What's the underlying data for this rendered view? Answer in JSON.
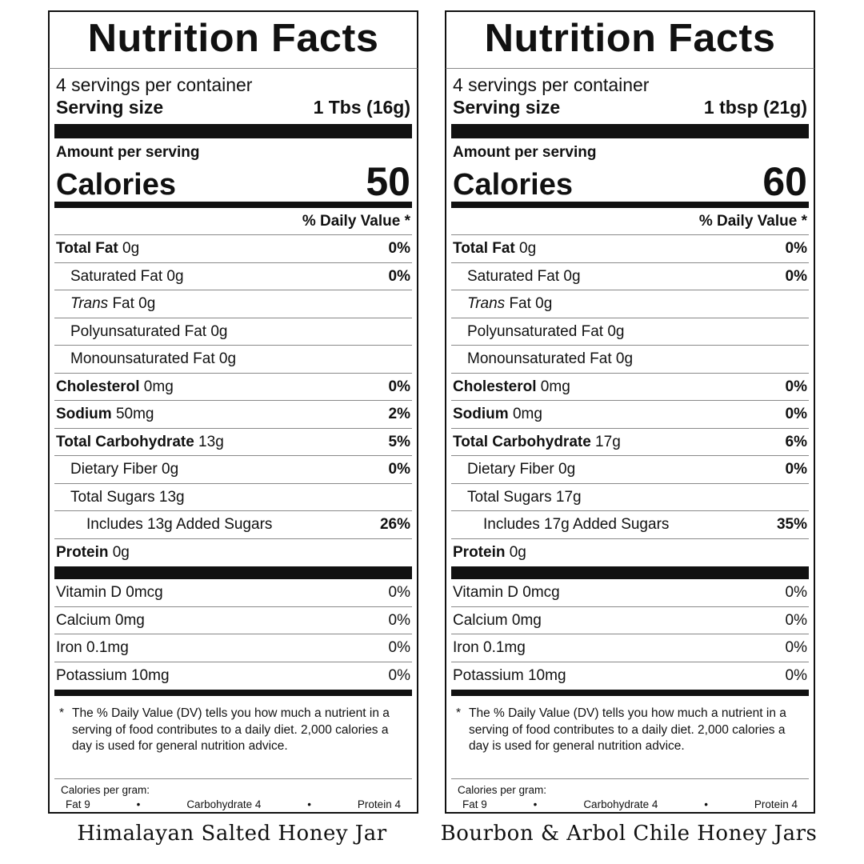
{
  "labels": [
    {
      "title": "Nutrition Facts",
      "servings_per_container": "4 servings per container",
      "serving_size_label": "Serving size",
      "serving_size_value": "1 Tbs (16g)",
      "amount_per_serving": "Amount per serving",
      "calories_label": "Calories",
      "calories_value": "50",
      "daily_value_header": "% Daily Value *",
      "nutrients": {
        "total_fat": {
          "label": "Total Fat",
          "amount": " 0g",
          "dv": "0%"
        },
        "saturated_fat": {
          "label": "Saturated Fat 0g",
          "dv": "0%"
        },
        "trans_fat": {
          "label_italic": "Trans",
          "label_rest": " Fat 0g"
        },
        "polyunsaturated_fat": {
          "label": "Polyunsaturated Fat 0g"
        },
        "monounsaturated_fat": {
          "label": "Monounsaturated Fat 0g"
        },
        "cholesterol": {
          "label": "Cholesterol",
          "amount": " 0mg",
          "dv": "0%"
        },
        "sodium": {
          "label": "Sodium",
          "amount": " 50mg",
          "dv": "2%"
        },
        "total_carbohydrate": {
          "label": "Total Carbohydrate",
          "amount": " 13g",
          "dv": "5%"
        },
        "dietary_fiber": {
          "label": "Dietary Fiber 0g",
          "dv": "0%"
        },
        "total_sugars": {
          "label": "Total Sugars 13g"
        },
        "added_sugars": {
          "label": "Includes 13g Added Sugars",
          "dv": "26%"
        },
        "protein": {
          "label": "Protein",
          "amount": " 0g"
        }
      },
      "vitamins": [
        {
          "label": "Vitamin D 0mcg",
          "dv": "0%"
        },
        {
          "label": "Calcium 0mg",
          "dv": "0%"
        },
        {
          "label": "Iron 0.1mg",
          "dv": "0%"
        },
        {
          "label": "Potassium 10mg",
          "dv": "0%"
        }
      ],
      "footnote_star": "*",
      "footnote": "The % Daily Value (DV) tells you how much a nutrient in a serving of food contributes to a daily diet. 2,000 calories a day is used for general nutrition advice.",
      "calories_per_gram_label": "Calories per gram:",
      "calories_per_gram": {
        "fat": "Fat 9",
        "carb": "Carbohydrate 4",
        "protein": "Protein 4",
        "sep": "•"
      },
      "caption": "Himalayan Salted Honey Jar"
    },
    {
      "title": "Nutrition Facts",
      "servings_per_container": "4 servings per container",
      "serving_size_label": "Serving size",
      "serving_size_value": "1 tbsp (21g)",
      "amount_per_serving": "Amount per serving",
      "calories_label": "Calories",
      "calories_value": "60",
      "daily_value_header": "% Daily Value *",
      "nutrients": {
        "total_fat": {
          "label": "Total Fat",
          "amount": " 0g",
          "dv": "0%"
        },
        "saturated_fat": {
          "label": "Saturated Fat 0g",
          "dv": "0%"
        },
        "trans_fat": {
          "label_italic": "Trans",
          "label_rest": " Fat 0g"
        },
        "polyunsaturated_fat": {
          "label": "Polyunsaturated Fat 0g"
        },
        "monounsaturated_fat": {
          "label": "Monounsaturated Fat 0g"
        },
        "cholesterol": {
          "label": "Cholesterol",
          "amount": " 0mg",
          "dv": "0%"
        },
        "sodium": {
          "label": "Sodium",
          "amount": " 0mg",
          "dv": "0%"
        },
        "total_carbohydrate": {
          "label": "Total Carbohydrate",
          "amount": " 17g",
          "dv": "6%"
        },
        "dietary_fiber": {
          "label": "Dietary Fiber 0g",
          "dv": "0%"
        },
        "total_sugars": {
          "label": "Total Sugars 17g"
        },
        "added_sugars": {
          "label": "Includes 17g Added Sugars",
          "dv": "35%"
        },
        "protein": {
          "label": "Protein",
          "amount": " 0g"
        }
      },
      "vitamins": [
        {
          "label": "Vitamin D 0mcg",
          "dv": "0%"
        },
        {
          "label": "Calcium 0mg",
          "dv": "0%"
        },
        {
          "label": "Iron 0.1mg",
          "dv": "0%"
        },
        {
          "label": "Potassium 10mg",
          "dv": "0%"
        }
      ],
      "footnote_star": "*",
      "footnote": "The % Daily Value (DV) tells you how much a nutrient in a serving of food contributes to a daily diet. 2,000 calories a day is used for general nutrition advice.",
      "calories_per_gram_label": "Calories per gram:",
      "calories_per_gram": {
        "fat": "Fat 9",
        "carb": "Carbohydrate 4",
        "protein": "Protein 4",
        "sep": "•"
      },
      "caption": "Bourbon & Arbol Chile Honey Jars"
    }
  ]
}
